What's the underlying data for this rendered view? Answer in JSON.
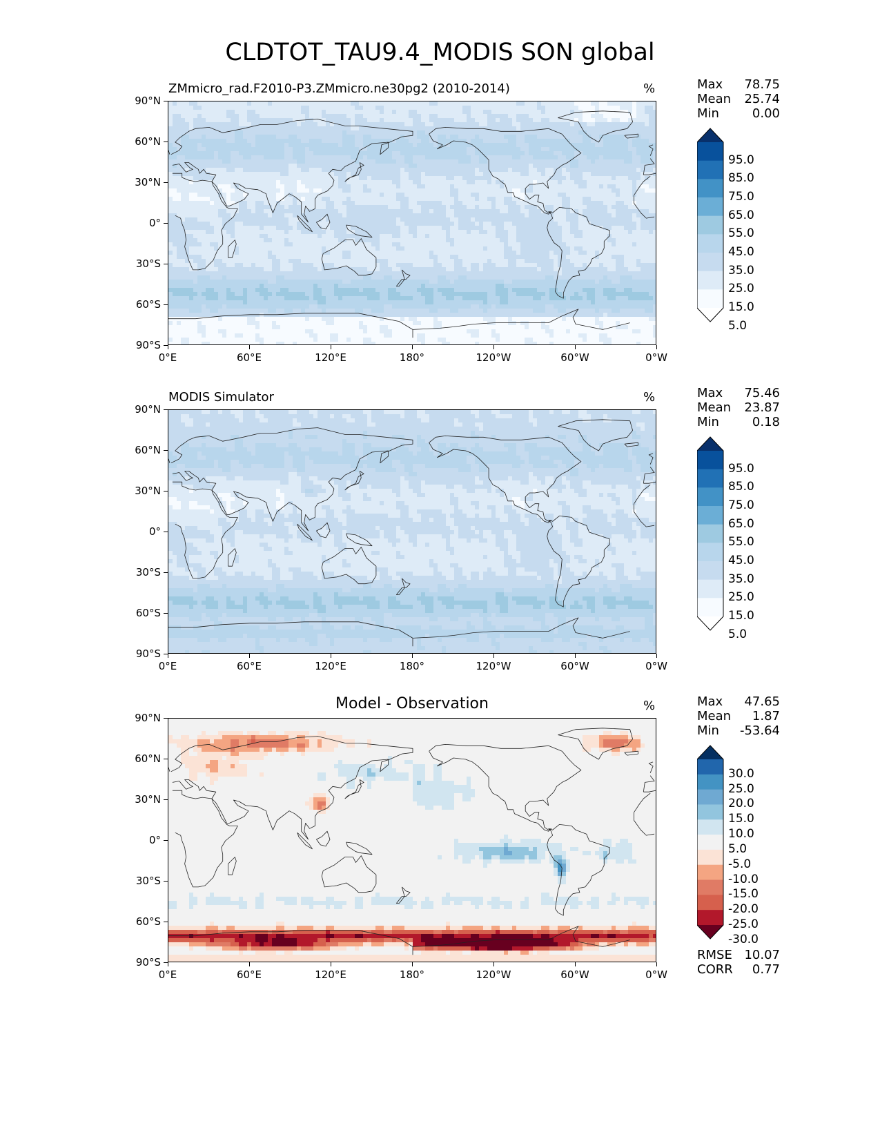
{
  "title": "CLDTOT_TAU9.4_MODIS SON global",
  "lat_ticks": [
    "90°N",
    "60°N",
    "30°N",
    "0°",
    "30°S",
    "60°S",
    "90°S"
  ],
  "lon_ticks": [
    "0°E",
    "60°E",
    "120°E",
    "180°",
    "120°W",
    "60°W",
    "0°W"
  ],
  "panels": [
    {
      "title": "ZMmicro_rad.F2010-P3.ZMmicro.ne30pg2 (2010-2014)",
      "unit": "%",
      "stats": [
        {
          "label": "Max",
          "value": "78.75"
        },
        {
          "label": "Mean",
          "value": "25.74"
        },
        {
          "label": "Min",
          "value": "0.00"
        }
      ],
      "colorbar": {
        "levels": [
          "95.0",
          "85.0",
          "75.0",
          "65.0",
          "55.0",
          "45.0",
          "35.0",
          "25.0",
          "15.0",
          "5.0"
        ],
        "colors": [
          "#08306b",
          "#08519c",
          "#2171b5",
          "#4292c6",
          "#6baed6",
          "#9ecae1",
          "#b8d6ec",
          "#c6dbef",
          "#deebf7",
          "#f7fbff",
          "#ffffff"
        ]
      }
    },
    {
      "title": "MODIS Simulator",
      "unit": "%",
      "stats": [
        {
          "label": "Max",
          "value": "75.46"
        },
        {
          "label": "Mean",
          "value": "23.87"
        },
        {
          "label": "Min",
          "value": "0.18"
        }
      ],
      "colorbar": {
        "levels": [
          "95.0",
          "85.0",
          "75.0",
          "65.0",
          "55.0",
          "45.0",
          "35.0",
          "25.0",
          "15.0",
          "5.0"
        ],
        "colors": [
          "#08306b",
          "#08519c",
          "#2171b5",
          "#4292c6",
          "#6baed6",
          "#9ecae1",
          "#b8d6ec",
          "#c6dbef",
          "#deebf7",
          "#f7fbff",
          "#ffffff"
        ]
      }
    },
    {
      "title": "Model - Observation",
      "unit": "%",
      "stats": [
        {
          "label": "Max",
          "value": "47.65"
        },
        {
          "label": "Mean",
          "value": "1.87"
        },
        {
          "label": "Min",
          "value": "-53.64"
        }
      ],
      "colorbar": {
        "levels": [
          "30.0",
          "25.0",
          "20.0",
          "15.0",
          "10.0",
          "5.0",
          "-5.0",
          "-10.0",
          "-15.0",
          "-20.0",
          "-25.0",
          "-30.0"
        ],
        "colors": [
          "#053061",
          "#2166ac",
          "#4393c3",
          "#6fa9d2",
          "#92c5de",
          "#d1e5f0",
          "#f2f2f2",
          "#fbe3d6",
          "#f4a582",
          "#e07b65",
          "#d6604d",
          "#b2182b",
          "#67001f"
        ]
      },
      "metrics": [
        {
          "label": "RMSE",
          "value": "10.07"
        },
        {
          "label": "CORR",
          "value": "0.77"
        }
      ]
    }
  ],
  "palette": {
    "seq": [
      "#f7fbff",
      "#deebf7",
      "#c6dbef",
      "#b8d6ec",
      "#9ecae1",
      "#6baed6",
      "#4292c6",
      "#2171b5"
    ],
    "div_pos": [
      "#f2f2f2",
      "#d1e5f0",
      "#92c5de",
      "#6fa9d2",
      "#4393c3",
      "#2166ac",
      "#053061"
    ],
    "div_neg": [
      "#f2f2f2",
      "#fbe3d6",
      "#f4a582",
      "#e07b65",
      "#d6604d",
      "#b2182b",
      "#67001f"
    ]
  }
}
